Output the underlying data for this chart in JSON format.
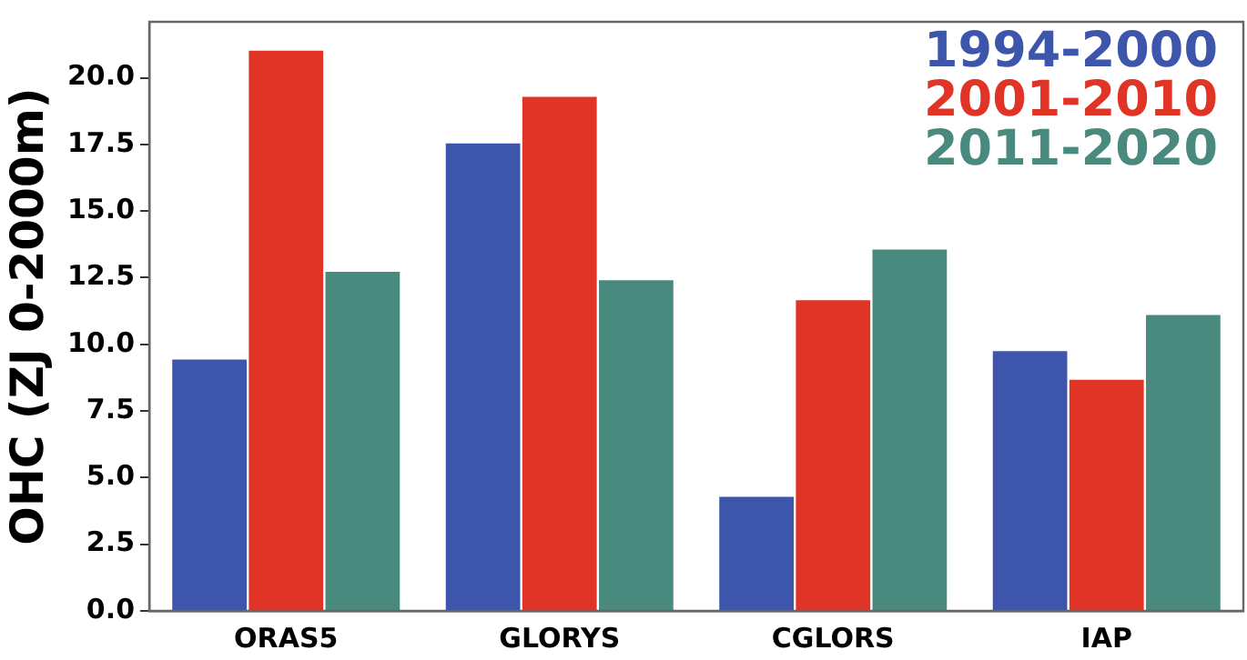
{
  "chart_data": {
    "type": "bar",
    "ylabel": "OHC (ZJ 0-2000m)",
    "categories": [
      "ORAS5",
      "GLORYS",
      "CGLORS",
      "IAP"
    ],
    "series": [
      {
        "name": "1994-2000",
        "color": "#3d55ab",
        "values": [
          9.47,
          17.58,
          4.32,
          9.79
        ]
      },
      {
        "name": "2001-2010",
        "color": "#e03526",
        "values": [
          21.06,
          19.33,
          11.7,
          8.71
        ]
      },
      {
        "name": "2011-2020",
        "color": "#4a8a7e",
        "values": [
          12.76,
          12.45,
          13.6,
          11.14
        ]
      }
    ],
    "ylim": [
      0,
      22.1
    ],
    "yticks": [
      {
        "value": 0,
        "label": "0.0"
      },
      {
        "value": 2.5,
        "label": "2.5"
      },
      {
        "value": 5,
        "label": "5.0"
      },
      {
        "value": 7.5,
        "label": "7.5"
      },
      {
        "value": 10,
        "label": "10.0"
      },
      {
        "value": 12.5,
        "label": "12.5"
      },
      {
        "value": 15,
        "label": "15.0"
      },
      {
        "value": 17.5,
        "label": "17.5"
      },
      {
        "value": 20,
        "label": "20.0"
      }
    ],
    "grid": false,
    "legend": "top right"
  }
}
